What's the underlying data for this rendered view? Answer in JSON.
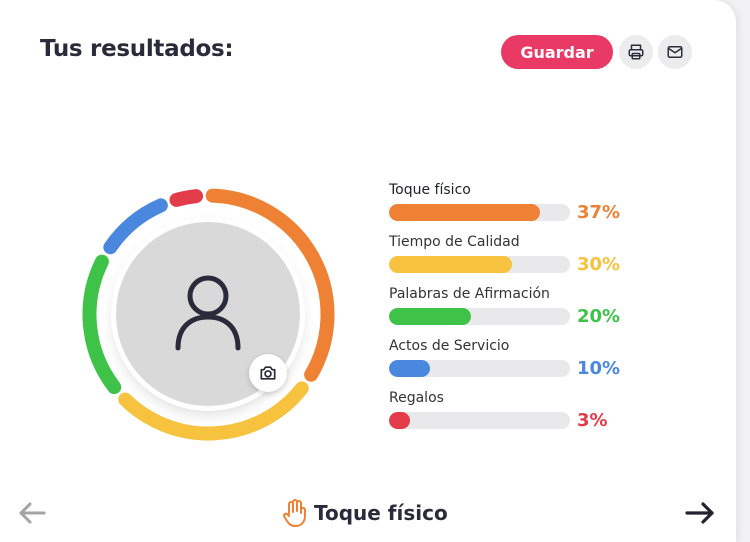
{
  "header": {
    "title": "Tus resultados:",
    "save_label": "Guardar",
    "print_icon": "printer-icon",
    "mail_icon": "mail-icon"
  },
  "colors": {
    "accent": "#e93a65",
    "orange": "#ee8133",
    "yellow": "#f7c33f",
    "green": "#3ec248",
    "blue": "#4a88df",
    "red": "#e43b4b",
    "track": "#e9e9eb"
  },
  "results": [
    {
      "label": "Toque físico",
      "percent": 37,
      "percent_text": "37%",
      "color": "#ee8133"
    },
    {
      "label": "Tiempo de Calidad",
      "percent": 30,
      "percent_text": "30%",
      "color": "#f7c33f"
    },
    {
      "label": "Palabras de Afirmación",
      "percent": 20,
      "percent_text": "20%",
      "color": "#3ec248"
    },
    {
      "label": "Actos de Servicio",
      "percent": 10,
      "percent_text": "10%",
      "color": "#4a88df"
    },
    {
      "label": "Regalos",
      "percent": 3,
      "percent_text": "3%",
      "color": "#e43b4b"
    }
  ],
  "footer": {
    "current_label": "Toque físico",
    "current_icon": "hand-icon",
    "prev_icon": "arrow-left-icon",
    "next_icon": "arrow-right-icon"
  }
}
